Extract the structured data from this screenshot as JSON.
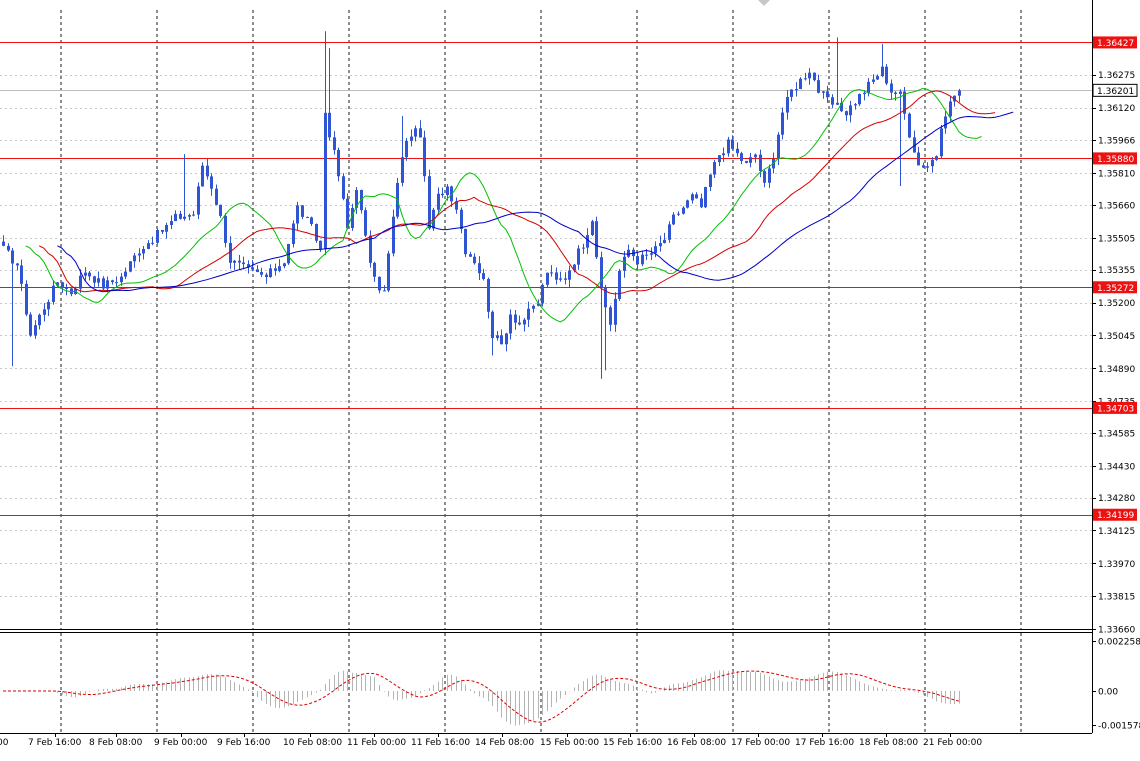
{
  "chart_data": {
    "type": "candlestick",
    "main": {
      "y_range": [
        1.3366,
        1.3658
      ],
      "y_ticks": [
        "1.36275",
        "1.36120",
        "1.35966",
        "1.35810",
        "1.35660",
        "1.35505",
        "1.35355",
        "1.35200",
        "1.35045",
        "1.34890",
        "1.34735",
        "1.34585",
        "1.34430",
        "1.34280",
        "1.34125",
        "1.33970",
        "1.33815",
        "1.33660"
      ],
      "price_labels": [
        {
          "value": 1.36427,
          "text": "1.36427",
          "kind": "resistance"
        },
        {
          "value": 1.36201,
          "text": "1.36201",
          "kind": "current"
        },
        {
          "value": 1.3588,
          "text": "1.35880",
          "kind": "resistance"
        },
        {
          "value": 1.35272,
          "text": "1.35272",
          "kind": "support"
        },
        {
          "value": 1.34703,
          "text": "1.34703",
          "kind": "support"
        },
        {
          "value": 1.34199,
          "text": "1.34199",
          "kind": "support"
        }
      ],
      "candle_count": 212,
      "close_path": [
        [
          0,
          1.3545
        ],
        [
          3,
          1.3538
        ],
        [
          6,
          1.3505
        ],
        [
          9,
          1.3518
        ],
        [
          12,
          1.353
        ],
        [
          15,
          1.3525
        ],
        [
          18,
          1.3535
        ],
        [
          22,
          1.3528
        ],
        [
          26,
          1.3532
        ],
        [
          30,
          1.3545
        ],
        [
          34,
          1.3552
        ],
        [
          38,
          1.356
        ],
        [
          42,
          1.3562
        ],
        [
          44,
          1.3585
        ],
        [
          46,
          1.3575
        ],
        [
          48,
          1.356
        ],
        [
          50,
          1.354
        ],
        [
          54,
          1.3535
        ],
        [
          58,
          1.3532
        ],
        [
          62,
          1.354
        ],
        [
          65,
          1.3565
        ],
        [
          68,
          1.3555
        ],
        [
          70,
          1.3545
        ],
        [
          71,
          1.361
        ],
        [
          72,
          1.36
        ],
        [
          74,
          1.358
        ],
        [
          76,
          1.3555
        ],
        [
          78,
          1.3575
        ],
        [
          80,
          1.355
        ],
        [
          82,
          1.353
        ],
        [
          84,
          1.3525
        ],
        [
          86,
          1.356
        ],
        [
          88,
          1.359
        ],
        [
          90,
          1.36
        ],
        [
          92,
          1.36
        ],
        [
          94,
          1.3555
        ],
        [
          96,
          1.357
        ],
        [
          98,
          1.3575
        ],
        [
          100,
          1.3565
        ],
        [
          102,
          1.3545
        ],
        [
          104,
          1.354
        ],
        [
          106,
          1.353
        ],
        [
          108,
          1.3505
        ],
        [
          110,
          1.35
        ],
        [
          112,
          1.3515
        ],
        [
          114,
          1.351
        ],
        [
          116,
          1.3515
        ],
        [
          118,
          1.352
        ],
        [
          120,
          1.3535
        ],
        [
          122,
          1.353
        ],
        [
          124,
          1.3532
        ],
        [
          126,
          1.354
        ],
        [
          128,
          1.3548
        ],
        [
          130,
          1.356
        ],
        [
          132,
          1.3525
        ],
        [
          134,
          1.351
        ],
        [
          136,
          1.3535
        ],
        [
          138,
          1.3545
        ],
        [
          140,
          1.354
        ],
        [
          142,
          1.3542
        ],
        [
          144,
          1.3545
        ],
        [
          146,
          1.355
        ],
        [
          148,
          1.356
        ],
        [
          150,
          1.3565
        ],
        [
          152,
          1.357
        ],
        [
          154,
          1.3565
        ],
        [
          156,
          1.358
        ],
        [
          158,
          1.359
        ],
        [
          160,
          1.3595
        ],
        [
          162,
          1.359
        ],
        [
          164,
          1.3585
        ],
        [
          166,
          1.359
        ],
        [
          168,
          1.3575
        ],
        [
          170,
          1.359
        ],
        [
          172,
          1.361
        ],
        [
          174,
          1.362
        ],
        [
          176,
          1.3625
        ],
        [
          178,
          1.363
        ],
        [
          180,
          1.362
        ],
        [
          182,
          1.3615
        ],
        [
          184,
          1.3612
        ],
        [
          186,
          1.361
        ],
        [
          188,
          1.3615
        ],
        [
          190,
          1.362
        ],
        [
          192,
          1.3625
        ],
        [
          194,
          1.363
        ],
        [
          196,
          1.362
        ],
        [
          198,
          1.3618
        ],
        [
          200,
          1.36
        ],
        [
          202,
          1.3585
        ],
        [
          204,
          1.3585
        ],
        [
          206,
          1.359
        ],
        [
          208,
          1.361
        ],
        [
          210,
          1.3618
        ],
        [
          211,
          1.362
        ]
      ],
      "series": [
        {
          "name": "",
          "color": "#00c000",
          "offset": 5
        },
        {
          "name": "",
          "color": "#d40000",
          "offset": 8
        },
        {
          "name": "",
          "color": "#0000c8",
          "offset": 12
        }
      ],
      "candle_color": "#2f55d4",
      "hline_color": "#ee1111"
    },
    "oscillator": {
      "y_range": [
        -0.001578,
        0.002258
      ],
      "y_ticks": [
        "0.002258",
        "0.00",
        "-0.001578"
      ],
      "hist_color": "#b4b4b4",
      "signal_color": "#dd0000"
    },
    "x_ticks": [
      "7 Feb 16:00",
      "8 Feb 08:00",
      "9 Feb 00:00",
      "9 Feb 16:00",
      "10 Feb 08:00",
      "11 Feb 00:00",
      "11 Feb 16:00",
      "14 Feb 08:00",
      "15 Feb 00:00",
      "15 Feb 16:00",
      "16 Feb 08:00",
      "17 Feb 00:00",
      "17 Feb 16:00",
      "18 Feb 08:00",
      "21 Feb 00:00"
    ],
    "x_tick_partial": ":00",
    "grid": true
  }
}
